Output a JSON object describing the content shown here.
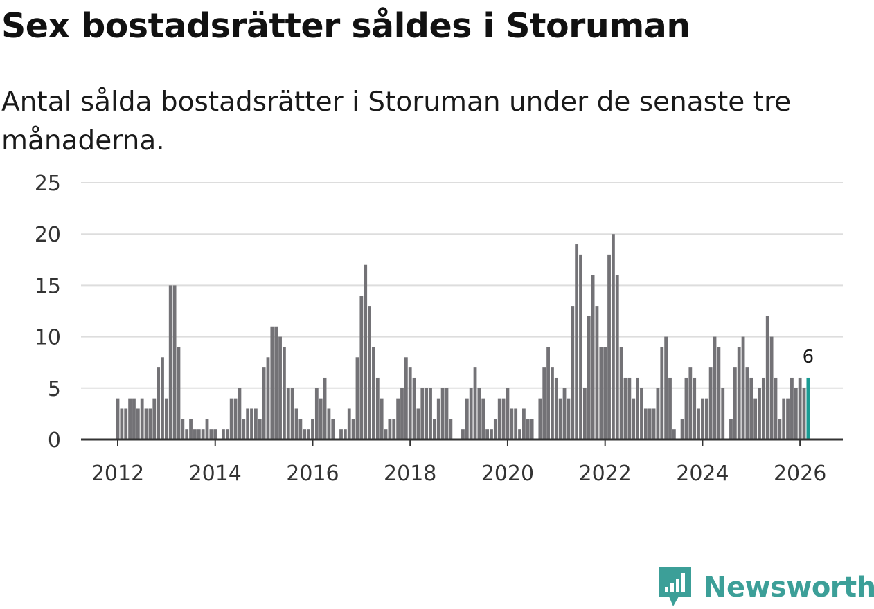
{
  "title": "Sex bostadsrätter såldes i Storuman",
  "subtitle": "Antal sålda bostadsrätter i Storuman under de senaste tre månaderna.",
  "brand": {
    "name": "Newsworthy",
    "icon": "newsworthy-logo-icon",
    "color": "#3c9f98"
  },
  "colors": {
    "bar": "#737276",
    "highlight": "#1a9c94",
    "grid": "#dddddd",
    "axis": "#333333"
  },
  "chart_data": {
    "type": "bar",
    "title": "Sex bostadsrätter såldes i Storuman",
    "subtitle": "Antal sålda bostadsrätter i Storuman under de senaste tre månaderna.",
    "xlabel": "",
    "ylabel": "",
    "start": "2012-01",
    "frequency": "monthly",
    "x_ticks": [
      "2012",
      "2014",
      "2016",
      "2018",
      "2020",
      "2022",
      "2024",
      "2026"
    ],
    "y_ticks": [
      0,
      5,
      10,
      15,
      20,
      25
    ],
    "ylim": [
      0,
      25
    ],
    "grid": true,
    "highlight_last": true,
    "last_label": "6",
    "series": [
      {
        "name": "Antal sålda bostadsrätter",
        "values": [
          4,
          3,
          3,
          4,
          4,
          3,
          4,
          3,
          3,
          4,
          7,
          8,
          4,
          15,
          15,
          9,
          2,
          1,
          2,
          1,
          1,
          1,
          2,
          1,
          1,
          0,
          1,
          1,
          4,
          4,
          5,
          2,
          3,
          3,
          3,
          2,
          7,
          8,
          11,
          11,
          10,
          9,
          5,
          5,
          3,
          2,
          1,
          1,
          2,
          5,
          4,
          6,
          3,
          2,
          0,
          1,
          1,
          3,
          2,
          8,
          14,
          17,
          13,
          9,
          6,
          4,
          1,
          2,
          2,
          4,
          5,
          8,
          7,
          6,
          3,
          5,
          5,
          5,
          2,
          4,
          5,
          5,
          2,
          0,
          0,
          1,
          4,
          5,
          7,
          5,
          4,
          1,
          1,
          2,
          4,
          4,
          5,
          3,
          3,
          1,
          3,
          2,
          2,
          0,
          4,
          7,
          9,
          7,
          6,
          4,
          5,
          4,
          13,
          19,
          18,
          5,
          12,
          16,
          13,
          9,
          9,
          18,
          20,
          16,
          9,
          6,
          6,
          4,
          6,
          5,
          3,
          3,
          3,
          5,
          9,
          10,
          6,
          1,
          0,
          2,
          6,
          7,
          6,
          3,
          4,
          4,
          7,
          10,
          9,
          5,
          0,
          2,
          7,
          9,
          10,
          7,
          6,
          4,
          5,
          6,
          12,
          10,
          6,
          2,
          4,
          4,
          6,
          5,
          6,
          5,
          6
        ]
      }
    ]
  }
}
